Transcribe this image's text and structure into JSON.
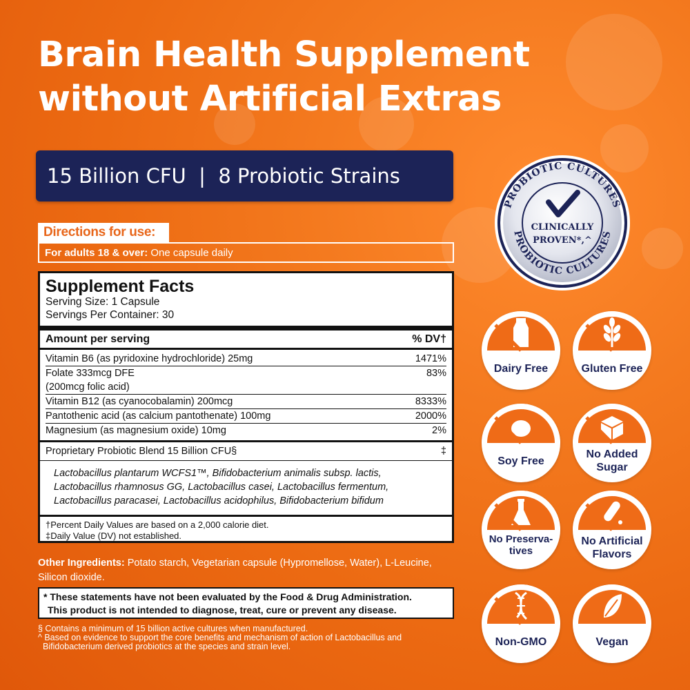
{
  "headline": {
    "line1": "Brain Health Supplement",
    "line2": "without Artificial Extras"
  },
  "banner": {
    "text": "15 Billion CFU  |  8 Probiotic Strains"
  },
  "directions": {
    "title": "Directions for use:",
    "label": "For adults 18 & over:",
    "value": " One capsule daily"
  },
  "supplement_facts": {
    "title": "Supplement Facts",
    "serving_size": "Serving Size: 1 Capsule",
    "servings_per_container": "Servings Per Container: 30",
    "amount_header": "Amount per serving",
    "dv_header": "% DV†",
    "nutrients": [
      {
        "name": "Vitamin B6 (as pyridoxine hydrochloride) 25mg",
        "dv": "1471%"
      },
      {
        "name": "Folate 333mcg DFE",
        "dv": "83%"
      },
      {
        "name": "(200mcg folic acid)",
        "dv": ""
      },
      {
        "name": "Vitamin B12 (as cyanocobalamin) 200mcg",
        "dv": "8333%"
      },
      {
        "name": "Pantothenic acid (as calcium pantothenate) 100mg",
        "dv": "2000%"
      },
      {
        "name": "Magnesium (as magnesium oxide) 10mg",
        "dv": "2%"
      }
    ],
    "blend_name": "Proprietary Probiotic Blend 15 Billion CFU§",
    "blend_dv": "‡",
    "strains_line1": "Lactobacillus plantarum WCFS1™, Bifidobacterium animalis subsp. lactis,",
    "strains_line2": "Lactobacillus rhamnosus GG, Lactobacillus casei, Lactobacillus fermentum,",
    "strains_line3": "Lactobacillus paracasei, Lactobacillus acidophilus, Bifidobacterium bifidum",
    "footnote1": "†Percent Daily Values are based on a 2,000 calorie diet.",
    "footnote2": "‡Daily Value (DV) not established."
  },
  "other_ingredients": {
    "label": "Other Ingredients:",
    "value": " Potato starch, Vegetarian capsule (Hypromellose, Water), L-Leucine, Silicon dioxide."
  },
  "fda": {
    "line1": "* These statements have not been evaluated by the Food & Drug Administration.",
    "line2": "This product is not intended to diagnose, treat, cure or prevent any disease."
  },
  "footnotes": {
    "line1": "§ Contains a minimum of 15 billion active cultures when manufactured.",
    "line2": "^ Based on evidence to support the core benefits and mechanism of action of Lactobacillus and",
    "line3": "Bifidobacterium derived probiotics at the species and strain level."
  },
  "seal": {
    "ring_text_top": "PROBIOTIC CULTURES",
    "ring_text_bottom": "PROBIOTIC CULTURES",
    "center_line1": "CLINICALLY",
    "center_line2": "PROVEN*,^"
  },
  "badges": [
    {
      "label": "Dairy Free",
      "icon": "milk-bottle-icon"
    },
    {
      "label": "Gluten Free",
      "icon": "wheat-icon"
    },
    {
      "label": "Soy Free",
      "icon": "soybean-icon"
    },
    {
      "label": "No Added Sugar",
      "icon": "sugar-cube-icon"
    },
    {
      "label": "No Preserva-tives",
      "icon": "flask-icon"
    },
    {
      "label": "No Artificial Flavors",
      "icon": "test-tube-icon"
    },
    {
      "label": "Non-GMO",
      "icon": "dna-icon"
    },
    {
      "label": "Vegan",
      "icon": "leaf-icon"
    }
  ],
  "colors": {
    "background": "#ec6a12",
    "navy": "#1c2357",
    "orange": "#ef6b17",
    "white": "#ffffff"
  }
}
